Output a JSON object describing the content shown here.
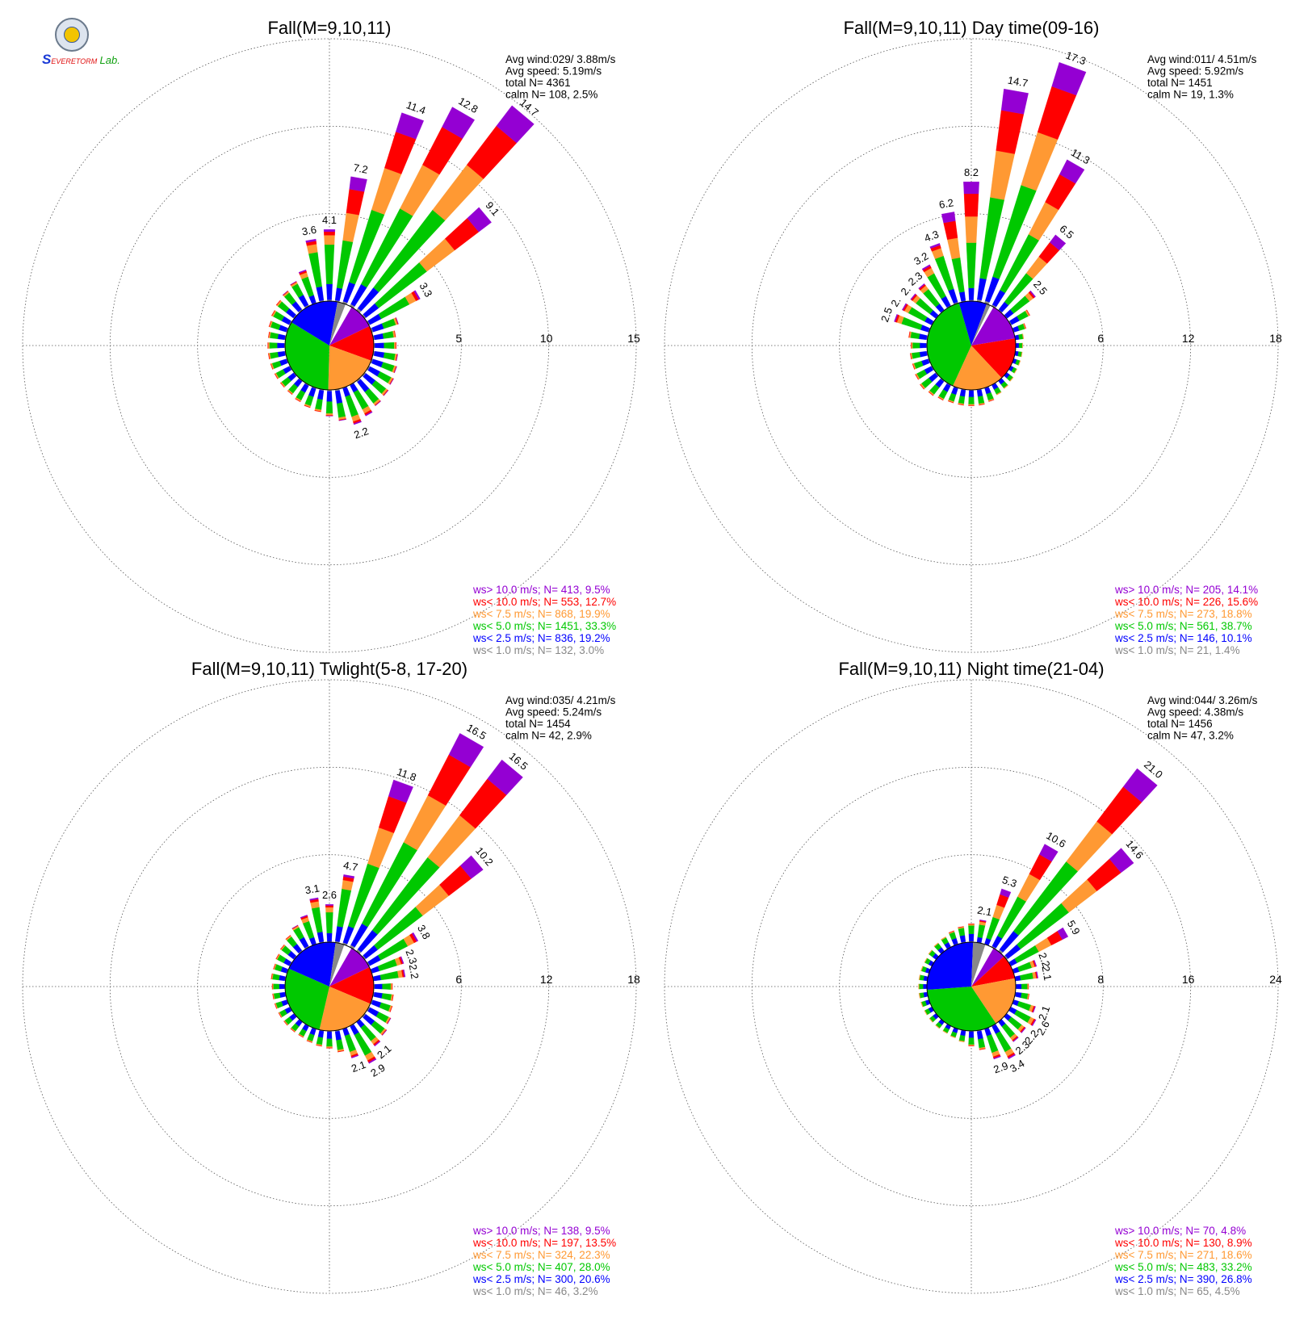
{
  "logo": {
    "s_letter": "S",
    "top": "EVERE",
    "bottom": "TORM",
    "lab": "Lab."
  },
  "colors": {
    "gt10": "#9400d3",
    "lt10": "#ff0000",
    "lt7_5": "#ff9933",
    "lt5": "#00c800",
    "lt2_5": "#0000ff",
    "lt1": "#888888",
    "grid": "#555555"
  },
  "chart_data": [
    {
      "type": "wind-rose",
      "title": "Fall(M=9,10,11)",
      "stats": [
        "Avg wind:029/ 3.88m/s",
        "Avg speed: 5.19m/s",
        "total N=        4361",
        "calm N=    108,   2.5%"
      ],
      "rings": [
        "5",
        "10",
        "15"
      ],
      "rmax": 15,
      "sectors": 36,
      "petals": [
        {
          "dir": 0,
          "total": 4.1,
          "label": "4.1"
        },
        {
          "dir": 10,
          "total": 7.2,
          "label": "7.2"
        },
        {
          "dir": 20,
          "total": 11.4,
          "label": "11.4"
        },
        {
          "dir": 30,
          "total": 12.8,
          "label": "12.8"
        },
        {
          "dir": 40,
          "total": 14.7,
          "label": "14.7"
        },
        {
          "dir": 50,
          "total": 9.1,
          "label": "9.1"
        },
        {
          "dir": 60,
          "total": 3.3,
          "label": "3.3"
        },
        {
          "dir": 70,
          "total": 1.6
        },
        {
          "dir": 80,
          "total": 1.3
        },
        {
          "dir": 90,
          "total": 1.3
        },
        {
          "dir": 100,
          "total": 1.4
        },
        {
          "dir": 110,
          "total": 1.5
        },
        {
          "dir": 120,
          "total": 1.6
        },
        {
          "dir": 130,
          "total": 1.7
        },
        {
          "dir": 140,
          "total": 1.8
        },
        {
          "dir": 150,
          "total": 2.0
        },
        {
          "dir": 160,
          "total": 2.2,
          "label": "2.2"
        },
        {
          "dir": 170,
          "total": 1.8
        },
        {
          "dir": 180,
          "total": 1.5
        },
        {
          "dir": 190,
          "total": 1.3
        },
        {
          "dir": 200,
          "total": 1.2
        },
        {
          "dir": 210,
          "total": 1.1
        },
        {
          "dir": 220,
          "total": 1.0
        },
        {
          "dir": 230,
          "total": 1.0
        },
        {
          "dir": 240,
          "total": 1.0
        },
        {
          "dir": 250,
          "total": 1.0
        },
        {
          "dir": 260,
          "total": 1.0
        },
        {
          "dir": 270,
          "total": 1.0
        },
        {
          "dir": 280,
          "total": 1.0
        },
        {
          "dir": 290,
          "total": 1.1
        },
        {
          "dir": 300,
          "total": 1.2
        },
        {
          "dir": 310,
          "total": 1.3
        },
        {
          "dir": 320,
          "total": 1.4
        },
        {
          "dir": 330,
          "total": 1.6
        },
        {
          "dir": 340,
          "total": 2.0
        },
        {
          "dir": 350,
          "total": 3.6,
          "label": "3.6"
        }
      ],
      "pie": [
        9.5,
        12.7,
        19.9,
        33.3,
        19.2,
        3.0
      ],
      "legend": [
        {
          "text": "ws> 10.0 m/s; N=   413,  9.5%",
          "color": "gt10"
        },
        {
          "text": "ws< 10.0 m/s; N=   553, 12.7%",
          "color": "lt10"
        },
        {
          "text": "ws<  7.5 m/s; N=   868, 19.9%",
          "color": "lt7_5"
        },
        {
          "text": "ws<  5.0 m/s; N= 1451, 33.3%",
          "color": "lt5"
        },
        {
          "text": "ws<  2.5 m/s; N=   836, 19.2%",
          "color": "lt2_5"
        },
        {
          "text": "ws<  1.0 m/s; N=   132,  3.0%",
          "color": "lt1"
        }
      ]
    },
    {
      "type": "wind-rose",
      "title": "Fall(M=9,10,11) Day time(09-16)",
      "stats": [
        "Avg wind:011/ 4.51m/s",
        "Avg speed: 5.92m/s",
        "total N=        1451",
        "calm N=     19,   1.3%"
      ],
      "rings": [
        "6",
        "12",
        "18"
      ],
      "rmax": 18,
      "sectors": 36,
      "petals": [
        {
          "dir": 0,
          "total": 8.2,
          "label": "8.2"
        },
        {
          "dir": 10,
          "total": 14.7,
          "label": "14.7"
        },
        {
          "dir": 20,
          "total": 17.3,
          "label": "17.3"
        },
        {
          "dir": 30,
          "total": 11.3,
          "label": "11.3"
        },
        {
          "dir": 40,
          "total": 6.5,
          "label": "6.5"
        },
        {
          "dir": 50,
          "total": 2.5,
          "label": "2.5"
        },
        {
          "dir": 60,
          "total": 1.5
        },
        {
          "dir": 70,
          "total": 0.9
        },
        {
          "dir": 80,
          "total": 0.6
        },
        {
          "dir": 90,
          "total": 0.5
        },
        {
          "dir": 100,
          "total": 0.5
        },
        {
          "dir": 110,
          "total": 0.5
        },
        {
          "dir": 120,
          "total": 0.5
        },
        {
          "dir": 130,
          "total": 0.6
        },
        {
          "dir": 140,
          "total": 0.7
        },
        {
          "dir": 150,
          "total": 0.8
        },
        {
          "dir": 160,
          "total": 1.0
        },
        {
          "dir": 170,
          "total": 1.1
        },
        {
          "dir": 180,
          "total": 1.1
        },
        {
          "dir": 190,
          "total": 1.1
        },
        {
          "dir": 200,
          "total": 1.1
        },
        {
          "dir": 210,
          "total": 1.2
        },
        {
          "dir": 220,
          "total": 1.3
        },
        {
          "dir": 230,
          "total": 1.4
        },
        {
          "dir": 240,
          "total": 1.3
        },
        {
          "dir": 250,
          "total": 1.2
        },
        {
          "dir": 260,
          "total": 1.2
        },
        {
          "dir": 270,
          "total": 1.1
        },
        {
          "dir": 280,
          "total": 1.3
        },
        {
          "dir": 290,
          "total": 2.5,
          "label": "2.5"
        },
        {
          "dir": 300,
          "total": 2.3,
          "label": "2."
        },
        {
          "dir": 310,
          "total": 2.2,
          "label": "2."
        },
        {
          "dir": 320,
          "total": 2.3,
          "label": "2.3"
        },
        {
          "dir": 330,
          "total": 3.2,
          "label": "3.2"
        },
        {
          "dir": 340,
          "total": 4.3,
          "label": "4.3"
        },
        {
          "dir": 350,
          "total": 6.2,
          "label": "6.2"
        }
      ],
      "pie": [
        14.1,
        15.6,
        18.8,
        38.7,
        10.1,
        1.4
      ],
      "legend": [
        {
          "text": "ws> 10.0 m/s; N=   205, 14.1%",
          "color": "gt10"
        },
        {
          "text": "ws< 10.0 m/s; N=   226, 15.6%",
          "color": "lt10"
        },
        {
          "text": "ws<  7.5 m/s; N=   273, 18.8%",
          "color": "lt7_5"
        },
        {
          "text": "ws<  5.0 m/s; N=   561, 38.7%",
          "color": "lt5"
        },
        {
          "text": "ws<  2.5 m/s; N=   146, 10.1%",
          "color": "lt2_5"
        },
        {
          "text": "ws<  1.0 m/s; N=    21,  1.4%",
          "color": "lt1"
        }
      ]
    },
    {
      "type": "wind-rose",
      "title": "Fall(M=9,10,11) Twlight(5-8, 17-20)",
      "stats": [
        "Avg wind:035/ 4.21m/s",
        "Avg speed: 5.24m/s",
        "total N=        1454",
        "calm N=     42,   2.9%"
      ],
      "rings": [
        "6",
        "12",
        "18"
      ],
      "rmax": 18,
      "sectors": 36,
      "petals": [
        {
          "dir": 0,
          "total": 2.6,
          "label": "2.6"
        },
        {
          "dir": 10,
          "total": 4.7,
          "label": "4.7"
        },
        {
          "dir": 20,
          "total": 11.8,
          "label": "11.8"
        },
        {
          "dir": 30,
          "total": 16.5,
          "label": "16.5"
        },
        {
          "dir": 40,
          "total": 16.5,
          "label": "16.5"
        },
        {
          "dir": 50,
          "total": 10.2,
          "label": "10.2"
        },
        {
          "dir": 60,
          "total": 3.8,
          "label": "3.8"
        },
        {
          "dir": 70,
          "total": 2.3,
          "label": "2.3"
        },
        {
          "dir": 80,
          "total": 2.2,
          "label": "2.2"
        },
        {
          "dir": 90,
          "total": 1.3
        },
        {
          "dir": 100,
          "total": 1.4
        },
        {
          "dir": 110,
          "total": 1.5
        },
        {
          "dir": 120,
          "total": 1.7
        },
        {
          "dir": 130,
          "total": 1.9
        },
        {
          "dir": 140,
          "total": 2.1,
          "label": "2.1"
        },
        {
          "dir": 150,
          "total": 2.9,
          "label": "2.9"
        },
        {
          "dir": 160,
          "total": 2.1,
          "label": "2.1"
        },
        {
          "dir": 170,
          "total": 1.5
        },
        {
          "dir": 180,
          "total": 1.2
        },
        {
          "dir": 190,
          "total": 1.1
        },
        {
          "dir": 200,
          "total": 1.0
        },
        {
          "dir": 210,
          "total": 0.9
        },
        {
          "dir": 220,
          "total": 0.9
        },
        {
          "dir": 230,
          "total": 0.9
        },
        {
          "dir": 240,
          "total": 0.9
        },
        {
          "dir": 250,
          "total": 0.9
        },
        {
          "dir": 260,
          "total": 0.9
        },
        {
          "dir": 270,
          "total": 0.9
        },
        {
          "dir": 280,
          "total": 1.0
        },
        {
          "dir": 290,
          "total": 1.0
        },
        {
          "dir": 300,
          "total": 1.1
        },
        {
          "dir": 310,
          "total": 1.2
        },
        {
          "dir": 320,
          "total": 1.4
        },
        {
          "dir": 330,
          "total": 1.7
        },
        {
          "dir": 340,
          "total": 2.1
        },
        {
          "dir": 350,
          "total": 3.1,
          "label": "3.1"
        }
      ],
      "pie": [
        9.5,
        13.5,
        22.3,
        28.0,
        20.6,
        3.2
      ],
      "legend": [
        {
          "text": "ws> 10.0 m/s; N=   138,  9.5%",
          "color": "gt10"
        },
        {
          "text": "ws< 10.0 m/s; N=   197, 13.5%",
          "color": "lt10"
        },
        {
          "text": "ws<  7.5 m/s; N=   324, 22.3%",
          "color": "lt7_5"
        },
        {
          "text": "ws<  5.0 m/s; N=   407, 28.0%",
          "color": "lt5"
        },
        {
          "text": "ws<  2.5 m/s; N=   300, 20.6%",
          "color": "lt2_5"
        },
        {
          "text": "ws<  1.0 m/s; N=    46,  3.2%",
          "color": "lt1"
        }
      ]
    },
    {
      "type": "wind-rose",
      "title": "Fall(M=9,10,11) Night time(21-04)",
      "stats": [
        "Avg wind:044/ 3.26m/s",
        "Avg speed: 4.38m/s",
        "total N=        1456",
        "calm N=     47,   3.2%"
      ],
      "rings": [
        "8",
        "16",
        "24"
      ],
      "rmax": 24,
      "sectors": 36,
      "petals": [
        {
          "dir": 0,
          "total": 1.7
        },
        {
          "dir": 10,
          "total": 2.1,
          "label": "2.1"
        },
        {
          "dir": 20,
          "total": 5.3,
          "label": "5.3"
        },
        {
          "dir": 30,
          "total": 10.6,
          "label": "10.6"
        },
        {
          "dir": 40,
          "total": 21.0,
          "label": "21.0"
        },
        {
          "dir": 50,
          "total": 14.6,
          "label": "14.6"
        },
        {
          "dir": 60,
          "total": 5.9,
          "label": "5.9"
        },
        {
          "dir": 70,
          "total": 2.2,
          "label": "2.2"
        },
        {
          "dir": 80,
          "total": 2.1,
          "label": "2.1"
        },
        {
          "dir": 90,
          "total": 1.2
        },
        {
          "dir": 100,
          "total": 1.3
        },
        {
          "dir": 110,
          "total": 2.1,
          "label": "2.1"
        },
        {
          "dir": 120,
          "total": 2.6,
          "label": "2.6"
        },
        {
          "dir": 130,
          "total": 2.2,
          "label": "2.2"
        },
        {
          "dir": 140,
          "total": 2.3,
          "label": "2.3"
        },
        {
          "dir": 150,
          "total": 3.4,
          "label": "3.4"
        },
        {
          "dir": 160,
          "total": 2.9,
          "label": "2.9"
        },
        {
          "dir": 170,
          "total": 1.8
        },
        {
          "dir": 180,
          "total": 1.4
        },
        {
          "dir": 190,
          "total": 1.1
        },
        {
          "dir": 200,
          "total": 0.9
        },
        {
          "dir": 210,
          "total": 0.8
        },
        {
          "dir": 220,
          "total": 0.8
        },
        {
          "dir": 230,
          "total": 0.8
        },
        {
          "dir": 240,
          "total": 0.8
        },
        {
          "dir": 250,
          "total": 0.8
        },
        {
          "dir": 260,
          "total": 0.8
        },
        {
          "dir": 270,
          "total": 0.8
        },
        {
          "dir": 280,
          "total": 0.8
        },
        {
          "dir": 290,
          "total": 0.8
        },
        {
          "dir": 300,
          "total": 0.8
        },
        {
          "dir": 310,
          "total": 0.9
        },
        {
          "dir": 320,
          "total": 1.0
        },
        {
          "dir": 330,
          "total": 1.1
        },
        {
          "dir": 340,
          "total": 1.3
        },
        {
          "dir": 350,
          "total": 1.5
        }
      ],
      "pie": [
        4.8,
        8.9,
        18.6,
        33.2,
        26.8,
        4.5
      ],
      "legend": [
        {
          "text": "ws> 10.0 m/s; N=    70,  4.8%",
          "color": "gt10"
        },
        {
          "text": "ws< 10.0 m/s; N=   130,  8.9%",
          "color": "lt10"
        },
        {
          "text": "ws<  7.5 m/s; N=   271, 18.6%",
          "color": "lt7_5"
        },
        {
          "text": "ws<  5.0 m/s; N=   483, 33.2%",
          "color": "lt5"
        },
        {
          "text": "ws<  2.5 m/s; N=   390, 26.8%",
          "color": "lt2_5"
        },
        {
          "text": "ws<  1.0 m/s; N=    65,  4.5%",
          "color": "lt1"
        }
      ]
    }
  ]
}
